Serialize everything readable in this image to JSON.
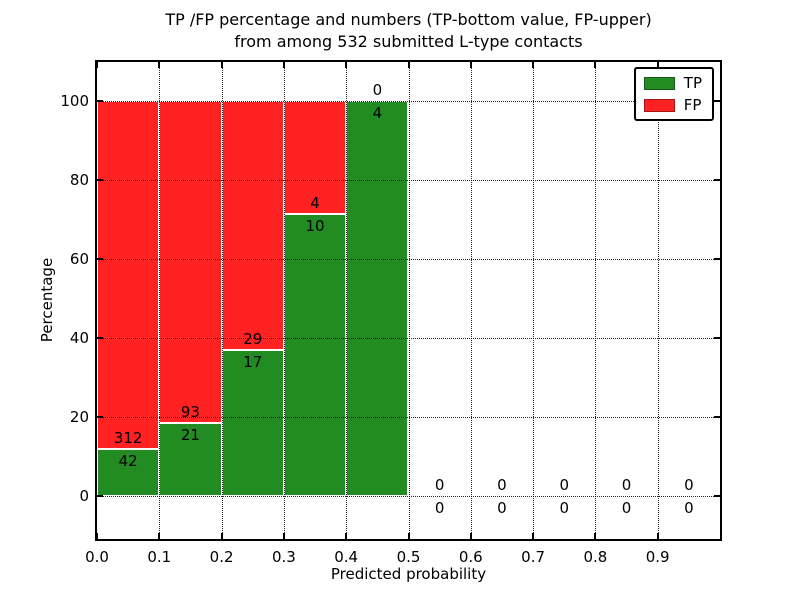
{
  "chart_data": {
    "type": "bar",
    "stacked": true,
    "title": "TP /FP percentage and numbers (TP-bottom value, FP-upper) from among 532 submitted L-type contacts",
    "title_lines": [
      "TP /FP percentage and numbers (TP-bottom value, FP-upper)",
      "from among 532 submitted L-type contacts"
    ],
    "xlabel": "Predicted probability",
    "ylabel": "Percentage",
    "total_contacts": 532,
    "xlim": [
      0.0,
      1.0
    ],
    "ylim": [
      -11,
      110
    ],
    "bin_width": 0.1,
    "bin_starts": [
      0.0,
      0.1,
      0.2,
      0.3,
      0.4,
      0.5,
      0.6,
      0.7,
      0.8,
      0.9
    ],
    "x_tick_values": [
      0.0,
      0.1,
      0.2,
      0.3,
      0.4,
      0.5,
      0.6,
      0.7,
      0.8,
      0.9
    ],
    "x_tick_labels": [
      "0.0",
      "0.1",
      "0.2",
      "0.3",
      "0.4",
      "0.5",
      "0.6",
      "0.7",
      "0.8",
      "0.9"
    ],
    "y_tick_values": [
      0,
      20,
      40,
      60,
      80,
      100
    ],
    "y_tick_labels": [
      "0",
      "20",
      "40",
      "60",
      "80",
      "100"
    ],
    "series": [
      {
        "name": "TP",
        "color": "#228B22",
        "counts": [
          42,
          21,
          17,
          10,
          4,
          0,
          0,
          0,
          0,
          0
        ]
      },
      {
        "name": "FP",
        "color": "#FF2222",
        "counts": [
          312,
          93,
          29,
          4,
          0,
          0,
          0,
          0,
          0,
          0
        ]
      }
    ],
    "tp_percent": [
      11.86,
      18.42,
      36.96,
      71.43,
      100.0,
      0,
      0,
      0,
      0,
      0
    ],
    "grid": {
      "style": "dotted",
      "color": "#000000",
      "x": true,
      "y": true
    },
    "legend_position": "upper-right"
  }
}
